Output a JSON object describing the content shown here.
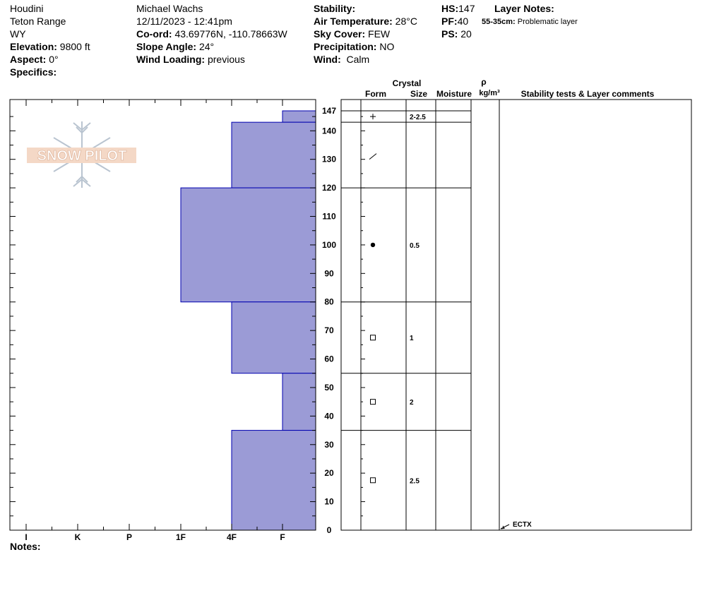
{
  "location": {
    "name": "Houdini",
    "range": "Teton Range",
    "state": "WY",
    "elevation_label": "Elevation:",
    "elevation": "9800 ft",
    "aspect_label": "Aspect:",
    "aspect": "0°",
    "specifics_label": "Specifics:"
  },
  "observer": {
    "name": "Michael Wachs",
    "datetime": "12/11/2023 - 12:41pm",
    "coord_label": "Co-ord:",
    "coord": "43.69776N, -110.78663W",
    "slope_label": "Slope Angle:",
    "slope": "24°",
    "wind_loading_label": "Wind Loading:",
    "wind_loading": "previous"
  },
  "conditions": {
    "stability_label": "Stability:",
    "stability": "",
    "air_temp_label": "Air Temperature:",
    "air_temp": "28°C",
    "sky_label": "Sky Cover:",
    "sky": "FEW",
    "precip_label": "Precipitation:",
    "precip": "NO",
    "wind_label": "Wind:",
    "wind": "Calm"
  },
  "depths": {
    "hs_label": "HS:",
    "hs": "147",
    "pf_label": "PF:",
    "pf": "40",
    "ps_label": "PS:",
    "ps": "20"
  },
  "layer_notes": {
    "label": "Layer Notes:",
    "range": "55-35cm:",
    "text": "Problematic layer"
  },
  "notes_label": "Notes:",
  "logo": {
    "text": "SNOW PILOT"
  },
  "colors": {
    "hardness_fill": "#9b9bd6",
    "hardness_stroke": "#0000b0"
  },
  "chart_data": {
    "type": "bar",
    "hardness_categories": [
      "I",
      "K",
      "P",
      "1F",
      "4F",
      "F"
    ],
    "y_ticks": [
      0,
      10,
      20,
      30,
      40,
      50,
      60,
      70,
      80,
      90,
      100,
      110,
      120,
      130,
      140,
      147
    ],
    "ylim": [
      0,
      147
    ],
    "hardness_layers": [
      {
        "top": 147,
        "bottom": 143,
        "hardness": "F"
      },
      {
        "top": 143,
        "bottom": 120,
        "hardness": "4F"
      },
      {
        "top": 120,
        "bottom": 80,
        "hardness": "1F"
      },
      {
        "top": 80,
        "bottom": 55,
        "hardness": "4F"
      },
      {
        "top": 55,
        "bottom": 35,
        "hardness": "F"
      },
      {
        "top": 35,
        "bottom": 0,
        "hardness": "4F"
      }
    ],
    "columns": {
      "crystal": "Crystal",
      "form": "Form",
      "size": "Size",
      "moisture": "Moisture",
      "rho": "ρ",
      "density": "kg/m³",
      "comments": "Stability tests & Layer comments"
    },
    "layer_boundaries": [
      147,
      143,
      120,
      80,
      55,
      35,
      0
    ],
    "crystals": [
      {
        "depth": 145,
        "form": "+",
        "size": "2-2.5"
      },
      {
        "depth": 131,
        "form": "/",
        "size": ""
      },
      {
        "depth": 100,
        "form": "●",
        "size": "0.5"
      },
      {
        "depth": 67.5,
        "form": "□",
        "size": "1"
      },
      {
        "depth": 45,
        "form": "□",
        "size": "2"
      },
      {
        "depth": 17.5,
        "form": "□",
        "size": "2.5"
      }
    ],
    "tests": [
      {
        "depth": 0,
        "label": "ECTX"
      }
    ]
  }
}
